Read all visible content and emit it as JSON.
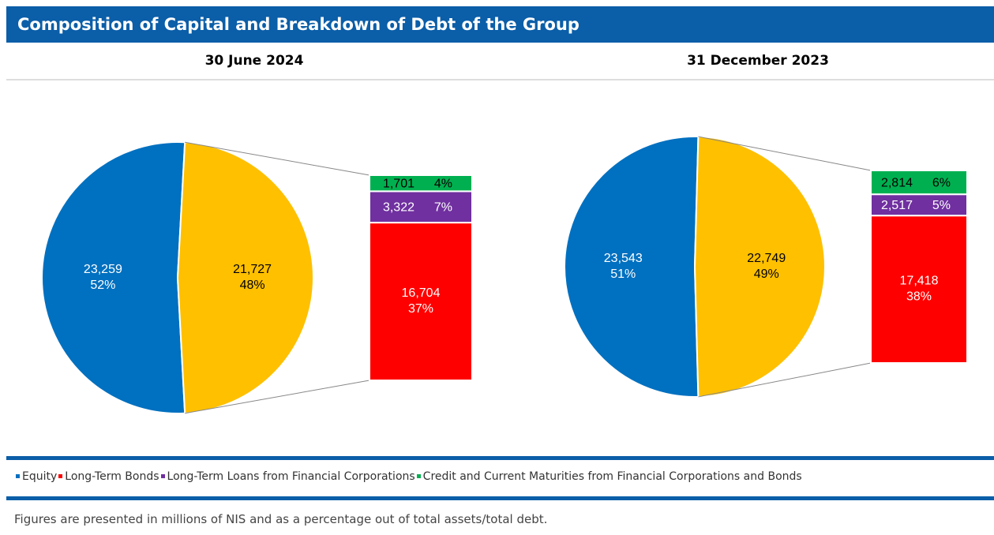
{
  "header": {
    "title": "Composition of Capital and Breakdown of Debt of the Group"
  },
  "chart_data": [
    {
      "type": "pie-of-bar",
      "title": "30 June 2024",
      "pie": {
        "values": [
          23259,
          21727
        ],
        "value_labels": [
          "23,259",
          "21,727"
        ],
        "percents": [
          52,
          48
        ],
        "percent_labels": [
          "52%",
          "48%"
        ],
        "colors": [
          "#0070c0",
          "#ffc000"
        ]
      },
      "bar": {
        "values": [
          16704,
          3322,
          1701
        ],
        "value_labels": [
          "16,704",
          "3,322",
          "1,701"
        ],
        "percents": [
          37,
          7,
          4
        ],
        "percent_labels": [
          "37%",
          "7%",
          "4%"
        ],
        "colors": [
          "#ff0000",
          "#7030a0",
          "#00b050"
        ]
      }
    },
    {
      "type": "pie-of-bar",
      "title": "31 December 2023",
      "pie": {
        "values": [
          23543,
          22749
        ],
        "value_labels": [
          "23,543",
          "22,749"
        ],
        "percents": [
          51,
          49
        ],
        "percent_labels": [
          "51%",
          "49%"
        ],
        "colors": [
          "#0070c0",
          "#ffc000"
        ]
      },
      "bar": {
        "values": [
          17418,
          2517,
          2814
        ],
        "value_labels": [
          "17,418",
          "2,517",
          "2,814"
        ],
        "percents": [
          38,
          5,
          6
        ],
        "percent_labels": [
          "38%",
          "5%",
          "6%"
        ],
        "colors": [
          "#ff0000",
          "#7030a0",
          "#00b050"
        ]
      }
    }
  ],
  "legend": [
    {
      "name": "Equity",
      "color": "#0070c0"
    },
    {
      "name": "Long-Term Bonds",
      "color": "#ff0000"
    },
    {
      "name": "Long-Term Loans from Financial Corporations",
      "color": "#7030a0"
    },
    {
      "name": "Credit and Current Maturities from Financial Corporations and Bonds",
      "color": "#00b050"
    }
  ],
  "note": "Figures are presented in millions of NIS and as a percentage out of total assets/total debt."
}
